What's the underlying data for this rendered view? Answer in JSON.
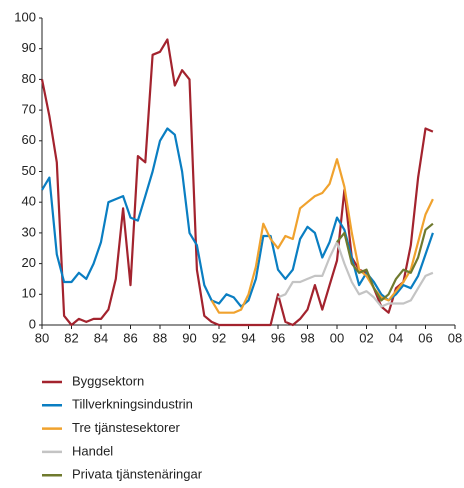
{
  "chart_data": {
    "type": "line",
    "x": [
      1980,
      1980.5,
      1981,
      1981.5,
      1982,
      1982.5,
      1983,
      1983.5,
      1984,
      1984.5,
      1985,
      1985.5,
      1986,
      1986.5,
      1987,
      1987.5,
      1988,
      1988.5,
      1989,
      1989.5,
      1990,
      1990.5,
      1991,
      1991.5,
      1992,
      1992.5,
      1993,
      1993.5,
      1994,
      1994.5,
      1995,
      1995.5,
      1996,
      1996.5,
      1997,
      1997.5,
      1998,
      1998.5,
      1999,
      1999.5,
      2000,
      2000.5,
      2001,
      2001.5,
      2002,
      2002.5,
      2003,
      2003.5,
      2004,
      2004.5,
      2005,
      2005.5,
      2006,
      2006.5
    ],
    "series": [
      {
        "name": "Byggsektorn",
        "color": "#a3232e",
        "values": [
          80,
          68,
          53,
          3,
          0,
          2,
          1,
          2,
          2,
          5,
          15,
          38,
          13,
          55,
          53,
          88,
          89,
          93,
          78,
          83,
          80,
          18,
          3,
          1,
          0,
          0,
          0,
          0,
          0,
          0,
          0,
          0,
          10,
          1,
          0,
          2,
          5,
          13,
          5,
          13,
          21,
          44,
          22,
          18,
          17,
          12,
          6,
          4,
          12,
          14,
          26,
          48,
          64,
          63
        ]
      },
      {
        "name": "Tillverkningsindustrin",
        "color": "#0a7ec2",
        "values": [
          44,
          48,
          23,
          14,
          14,
          17,
          15,
          20,
          27,
          40,
          41,
          42,
          35,
          34,
          42,
          50,
          60,
          64,
          62,
          50,
          30,
          26,
          13,
          8,
          7,
          10,
          9,
          6,
          8,
          15,
          29,
          29,
          18,
          15,
          18,
          28,
          32,
          30,
          22,
          27,
          35,
          31,
          22,
          13,
          17,
          14,
          10,
          8,
          10,
          13,
          12,
          16,
          23,
          30
        ]
      },
      {
        "name": "Tre tjänstesektorer",
        "color": "#f0a22e",
        "values": [
          null,
          null,
          null,
          null,
          null,
          null,
          null,
          null,
          null,
          null,
          null,
          null,
          null,
          null,
          null,
          null,
          null,
          null,
          null,
          null,
          null,
          null,
          null,
          8,
          4,
          4,
          4,
          5,
          10,
          19,
          33,
          28,
          25,
          29,
          28,
          38,
          40,
          42,
          43,
          46,
          54,
          45,
          30,
          18,
          16,
          12,
          9,
          8,
          11,
          14,
          18,
          27,
          36,
          41
        ]
      },
      {
        "name": "Handel",
        "color": "#c4c4c4",
        "values": [
          null,
          null,
          null,
          null,
          null,
          null,
          null,
          null,
          null,
          null,
          null,
          null,
          null,
          null,
          null,
          null,
          null,
          null,
          null,
          null,
          null,
          null,
          null,
          null,
          null,
          null,
          null,
          null,
          null,
          null,
          null,
          null,
          9,
          10,
          14,
          14,
          15,
          16,
          16,
          22,
          27,
          20,
          14,
          10,
          11,
          9,
          6,
          7,
          7,
          7,
          8,
          12,
          16,
          17
        ]
      },
      {
        "name": "Privata tjänstenäringar",
        "color": "#6f7a2e",
        "values": [
          null,
          null,
          null,
          null,
          null,
          null,
          null,
          null,
          null,
          null,
          null,
          null,
          null,
          null,
          null,
          null,
          null,
          null,
          null,
          null,
          null,
          null,
          null,
          null,
          null,
          null,
          null,
          null,
          null,
          null,
          null,
          null,
          null,
          null,
          null,
          null,
          null,
          null,
          null,
          null,
          27,
          30,
          20,
          17,
          18,
          12,
          8,
          10,
          15,
          18,
          17,
          22,
          31,
          33
        ]
      }
    ],
    "xlim": [
      1980,
      2008
    ],
    "xticks": [
      {
        "value": 1980,
        "label": "80"
      },
      {
        "value": 1982,
        "label": "82"
      },
      {
        "value": 1984,
        "label": "84"
      },
      {
        "value": 1986,
        "label": "86"
      },
      {
        "value": 1988,
        "label": "88"
      },
      {
        "value": 1990,
        "label": "90"
      },
      {
        "value": 1992,
        "label": "92"
      },
      {
        "value": 1994,
        "label": "94"
      },
      {
        "value": 1996,
        "label": "96"
      },
      {
        "value": 1998,
        "label": "98"
      },
      {
        "value": 2000,
        "label": "00"
      },
      {
        "value": 2002,
        "label": "02"
      },
      {
        "value": 2004,
        "label": "04"
      },
      {
        "value": 2006,
        "label": "06"
      },
      {
        "value": 2008,
        "label": "08"
      }
    ],
    "ylim": [
      0,
      100
    ],
    "yticks": [
      0,
      10,
      20,
      30,
      40,
      50,
      60,
      70,
      80,
      90,
      100
    ],
    "grid": false
  }
}
